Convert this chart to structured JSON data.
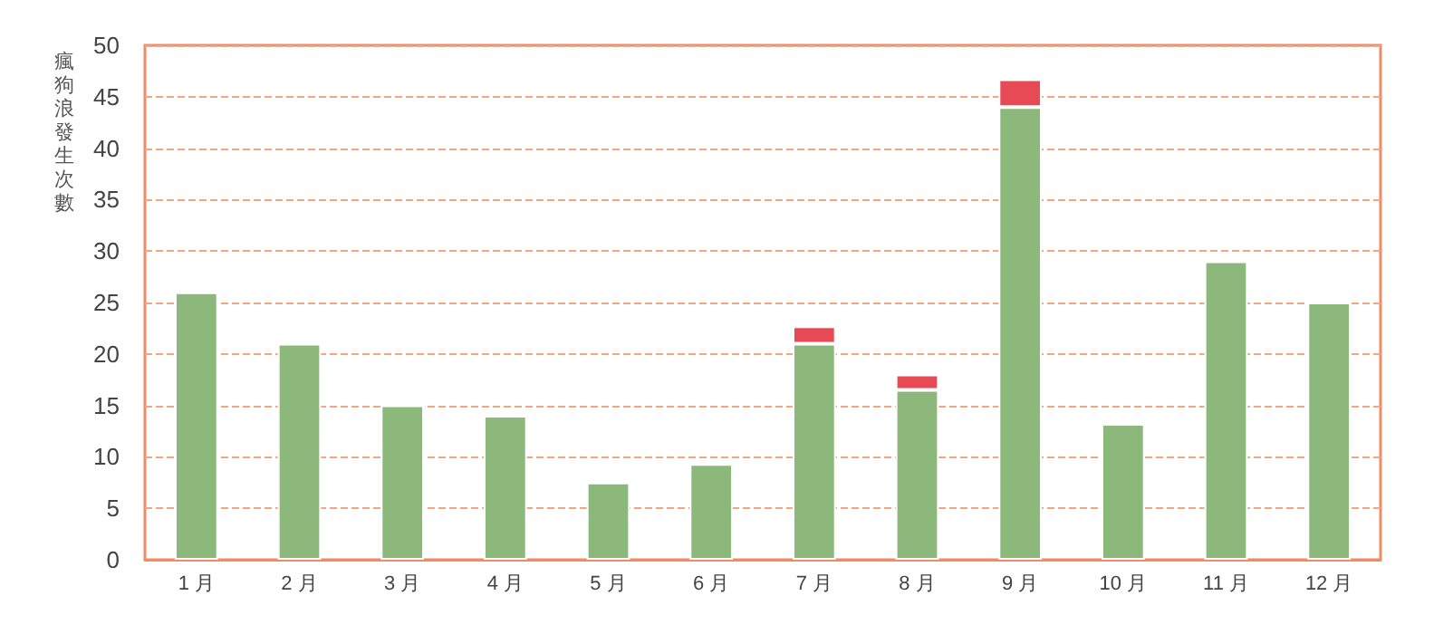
{
  "chart_data": {
    "type": "bar",
    "ylabel": "瘋狗浪發生次數",
    "categories": [
      "1 月",
      "2 月",
      "3 月",
      "4 月",
      "5 月",
      "6 月",
      "7 月",
      "8 月",
      "9 月",
      "10 月",
      "11 月",
      "12 月"
    ],
    "stacked": true,
    "series": [
      {
        "color": "#8db87c",
        "values": [
          26,
          21,
          15,
          14,
          7.5,
          9.3,
          21,
          16.5,
          44,
          13.2,
          29,
          25
        ]
      },
      {
        "color": "#e84a55",
        "values": [
          null,
          null,
          null,
          null,
          null,
          null,
          1.7,
          1.5,
          2.7,
          null,
          null,
          null
        ]
      }
    ],
    "ylim": [
      0,
      50
    ],
    "yticks": [
      0,
      5,
      10,
      15,
      20,
      25,
      30,
      35,
      40,
      45,
      50
    ],
    "grid": "y"
  }
}
